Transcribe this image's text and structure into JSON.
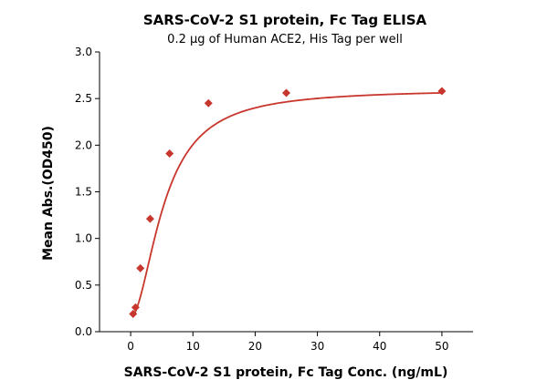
{
  "chart_data": {
    "type": "scatter",
    "title": "SARS-CoV-2 S1 protein, Fc Tag ELISA",
    "subtitle": "0.2 μg of Human ACE2, His Tag per well",
    "xlabel": "SARS-CoV-2 S1 protein, Fc Tag Conc. (ng/mL)",
    "ylabel": "Mean Abs.(OD450)",
    "xlim": [
      -5,
      55
    ],
    "ylim": [
      0,
      3.0
    ],
    "xticks": [
      0,
      10,
      20,
      30,
      40,
      50
    ],
    "yticks": [
      "0.0",
      "0.5",
      "1.0",
      "1.5",
      "2.0",
      "2.5",
      "3.0"
    ],
    "grid": false,
    "legend": "none",
    "series": [
      {
        "x": [
          0.39,
          0.78,
          1.56,
          3.13,
          6.25,
          12.5,
          25,
          50
        ],
        "y": [
          0.19,
          0.26,
          0.68,
          1.21,
          1.91,
          2.45,
          2.56,
          2.58
        ],
        "marker": "diamond",
        "fit": "four-parameter logistic",
        "color": "#c8372d"
      }
    ]
  }
}
